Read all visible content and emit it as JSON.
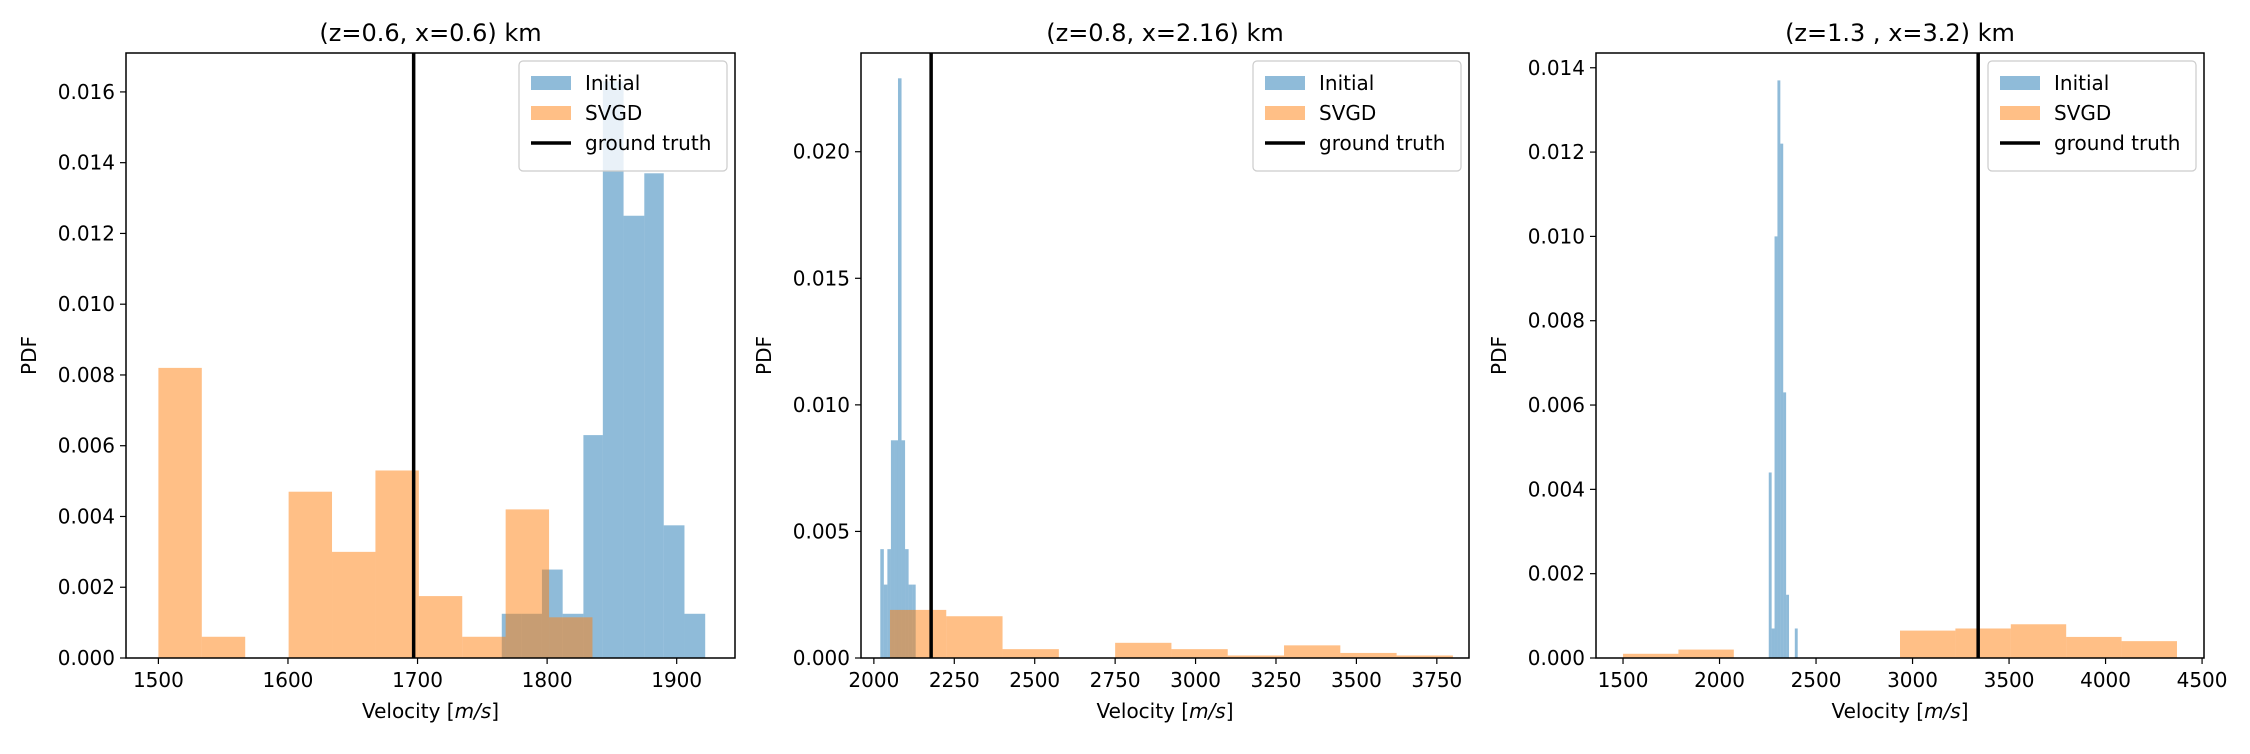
{
  "figure": {
    "colors": {
      "initial": "#1f77b4",
      "svgd": "#ff7f0e",
      "truth": "#000000",
      "initial_alpha": 0.5,
      "svgd_alpha": 0.5
    }
  },
  "chart_data": [
    {
      "type": "bar",
      "title": "(z=0.6, x=0.6) km",
      "xlabel": "Velocity [m/s]",
      "ylabel": "PDF",
      "xlim": [
        1475,
        1945
      ],
      "ylim": [
        0,
        0.0171
      ],
      "xticks": [
        "1500",
        "1600",
        "1700",
        "1800",
        "1900"
      ],
      "xtick_values": [
        1500,
        1600,
        1700,
        1800,
        1900
      ],
      "yticks": [
        "0.000",
        "0.002",
        "0.004",
        "0.006",
        "0.008",
        "0.010",
        "0.012",
        "0.014",
        "0.016"
      ],
      "ytick_values": [
        0,
        0.002,
        0.004,
        0.006,
        0.008,
        0.01,
        0.012,
        0.014,
        0.016
      ],
      "grid": false,
      "legend_position": "top-right",
      "ground_truth": 1697,
      "series": [
        {
          "name": "Initial",
          "bin_edges": [
            1765,
            1780,
            1796,
            1812,
            1828,
            1843,
            1859,
            1875,
            1890,
            1906,
            1922
          ],
          "values": [
            0.00125,
            0.00125,
            0.0025,
            0.00125,
            0.0063,
            0.0163,
            0.0125,
            0.0137,
            0.00375,
            0.00125
          ]
        },
        {
          "name": "SVGD",
          "bin_edges": [
            1500,
            1533.5,
            1567,
            1600.5,
            1634,
            1667.5,
            1701,
            1734.5,
            1768,
            1801.5,
            1835
          ],
          "values": [
            0.0082,
            0.0006,
            0.0,
            0.0047,
            0.003,
            0.0053,
            0.00175,
            0.0006,
            0.0042,
            0.00115
          ]
        }
      ]
    },
    {
      "type": "bar",
      "title": "(z=0.8, x=2.16) km",
      "xlabel": "Velocity [m/s]",
      "ylabel": "PDF",
      "xlim": [
        1960,
        3850
      ],
      "ylim": [
        0,
        0.0239
      ],
      "xticks": [
        "2000",
        "2250",
        "2500",
        "2750",
        "3000",
        "3250",
        "3500",
        "3750"
      ],
      "xtick_values": [
        2000,
        2250,
        2500,
        2750,
        3000,
        3250,
        3500,
        3750
      ],
      "yticks": [
        "0.000",
        "0.005",
        "0.010",
        "0.015",
        "0.020"
      ],
      "ytick_values": [
        0,
        0.005,
        0.01,
        0.015,
        0.02
      ],
      "grid": false,
      "legend_position": "top-right",
      "ground_truth": 2178,
      "series": [
        {
          "name": "Initial",
          "bin_edges": [
            2020,
            2031,
            2042,
            2053,
            2064,
            2075,
            2086,
            2097,
            2108,
            2119,
            2130
          ],
          "values": [
            0.0043,
            0.0029,
            0.0043,
            0.0086,
            0.0086,
            0.0229,
            0.0086,
            0.0043,
            0.0029,
            0.0029
          ]
        },
        {
          "name": "SVGD",
          "bin_edges": [
            2050,
            2225,
            2400,
            2575,
            2750,
            2925,
            3100,
            3275,
            3450,
            3625,
            3800
          ],
          "values": [
            0.0019,
            0.00165,
            0.00035,
            0.0,
            0.0006,
            0.00035,
            0.0001,
            0.0005,
            0.0002,
            0.0001
          ]
        }
      ]
    },
    {
      "type": "bar",
      "title": "(z=1.3 , x=3.2) km",
      "xlabel": "Velocity [m/s]",
      "ylabel": "PDF",
      "xlim": [
        1360,
        4510
      ],
      "ylim": [
        0,
        0.01435
      ],
      "xticks": [
        "1500",
        "2000",
        "2500",
        "3000",
        "3500",
        "4000",
        "4500"
      ],
      "xtick_values": [
        1500,
        2000,
        2500,
        3000,
        3500,
        4000,
        4500
      ],
      "yticks": [
        "0.000",
        "0.002",
        "0.004",
        "0.006",
        "0.008",
        "0.010",
        "0.012",
        "0.014"
      ],
      "ytick_values": [
        0,
        0.002,
        0.004,
        0.006,
        0.008,
        0.01,
        0.012,
        0.014
      ],
      "grid": false,
      "legend_position": "top-right",
      "ground_truth": 3340,
      "series": [
        {
          "name": "Initial",
          "bin_edges": [
            2255,
            2270,
            2285,
            2300,
            2315,
            2330,
            2345,
            2360,
            2375,
            2390,
            2405
          ],
          "values": [
            0.0044,
            0.0007,
            0.01,
            0.0137,
            0.0122,
            0.0063,
            0.0015,
            0.0,
            0.0,
            0.0007
          ]
        },
        {
          "name": "SVGD",
          "bin_edges": [
            1500,
            1787,
            2074,
            2361,
            2648,
            2935,
            3222,
            3509,
            3796,
            4083,
            4370
          ],
          "values": [
            0.0001,
            0.0002,
            0.0,
            0.0,
            0.0,
            0.00065,
            0.0007,
            0.0008,
            0.0005,
            0.0004
          ]
        }
      ]
    }
  ]
}
